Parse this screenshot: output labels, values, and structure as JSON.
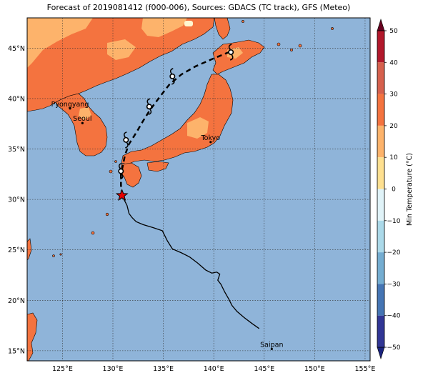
{
  "title": "Forecast of 2019081412 (f000-006), Sources: GDACS (TC track), GFS (Meteo)",
  "map": {
    "lon_range": [
      121.5,
      155.5
    ],
    "lat_range": [
      14,
      48
    ],
    "lon_ticks": [
      "125°E",
      "130°E",
      "135°E",
      "140°E",
      "145°E",
      "150°E",
      "155°E"
    ],
    "lat_ticks": [
      "15°N",
      "20°N",
      "25°N",
      "30°N",
      "35°N",
      "40°N",
      "45°N"
    ],
    "ocean_color": "#8fb4d9",
    "land_color": "#f4733f",
    "warm_land_color": "#fdb36b",
    "gridlines": true
  },
  "cities": [
    {
      "name": "Pyongyang",
      "lon": 125.75,
      "lat": 39.02
    },
    {
      "name": "Seoul",
      "lon": 126.98,
      "lat": 37.57
    },
    {
      "name": "Tokyo",
      "lon": 139.69,
      "lat": 35.69
    },
    {
      "name": "Saipan",
      "lon": 145.75,
      "lat": 15.18
    }
  ],
  "track": {
    "past": [
      [
        144.5,
        17.2
      ],
      [
        143.8,
        17.7
      ],
      [
        143.0,
        18.3
      ],
      [
        142.3,
        18.9
      ],
      [
        141.8,
        19.5
      ],
      [
        141.5,
        20.1
      ],
      [
        141.1,
        20.8
      ],
      [
        140.7,
        21.6
      ],
      [
        140.4,
        22.0
      ],
      [
        140.6,
        22.6
      ],
      [
        140.3,
        22.8
      ],
      [
        139.8,
        22.7
      ],
      [
        139.2,
        23.0
      ],
      [
        138.4,
        23.7
      ],
      [
        137.6,
        24.3
      ],
      [
        136.8,
        24.7
      ],
      [
        135.9,
        25.1
      ],
      [
        135.4,
        25.9
      ],
      [
        134.9,
        26.9
      ],
      [
        134.0,
        27.2
      ],
      [
        133.0,
        27.5
      ],
      [
        132.3,
        27.8
      ],
      [
        131.9,
        28.2
      ],
      [
        131.6,
        28.6
      ],
      [
        131.4,
        29.4
      ],
      [
        131.1,
        30.0
      ],
      [
        130.9,
        30.4
      ]
    ],
    "forecast": [
      [
        130.9,
        30.4
      ],
      [
        130.8,
        31.4
      ],
      [
        130.8,
        32.5
      ],
      [
        131.0,
        33.4
      ],
      [
        131.2,
        34.4
      ],
      [
        131.6,
        35.5
      ],
      [
        132.3,
        36.6
      ],
      [
        133.0,
        37.8
      ],
      [
        133.7,
        38.9
      ],
      [
        134.6,
        40.1
      ],
      [
        135.6,
        41.4
      ],
      [
        136.8,
        42.4
      ],
      [
        138.2,
        43.2
      ],
      [
        139.8,
        43.9
      ],
      [
        141.5,
        44.6
      ]
    ],
    "current_position": [
      130.9,
      30.4
    ],
    "forecast_points": [
      [
        130.8,
        32.8
      ],
      [
        131.3,
        35.9
      ],
      [
        133.6,
        39.2
      ],
      [
        135.9,
        42.2
      ],
      [
        141.7,
        44.6
      ]
    ]
  },
  "colorbar": {
    "label": "Min Temperature (°C)",
    "min": -50,
    "max": 50,
    "ticks": [
      "50",
      "40",
      "30",
      "20",
      "10",
      "0",
      "−10",
      "−20",
      "−30",
      "−40",
      "−50"
    ],
    "colors": [
      "#67001f",
      "#b2182b",
      "#d6604d",
      "#f4733f",
      "#fdb36b",
      "#fee090",
      "#ffffff",
      "#e0f3f8",
      "#abd9e9",
      "#74add1",
      "#4575b4",
      "#313695",
      "#1a237e"
    ]
  }
}
